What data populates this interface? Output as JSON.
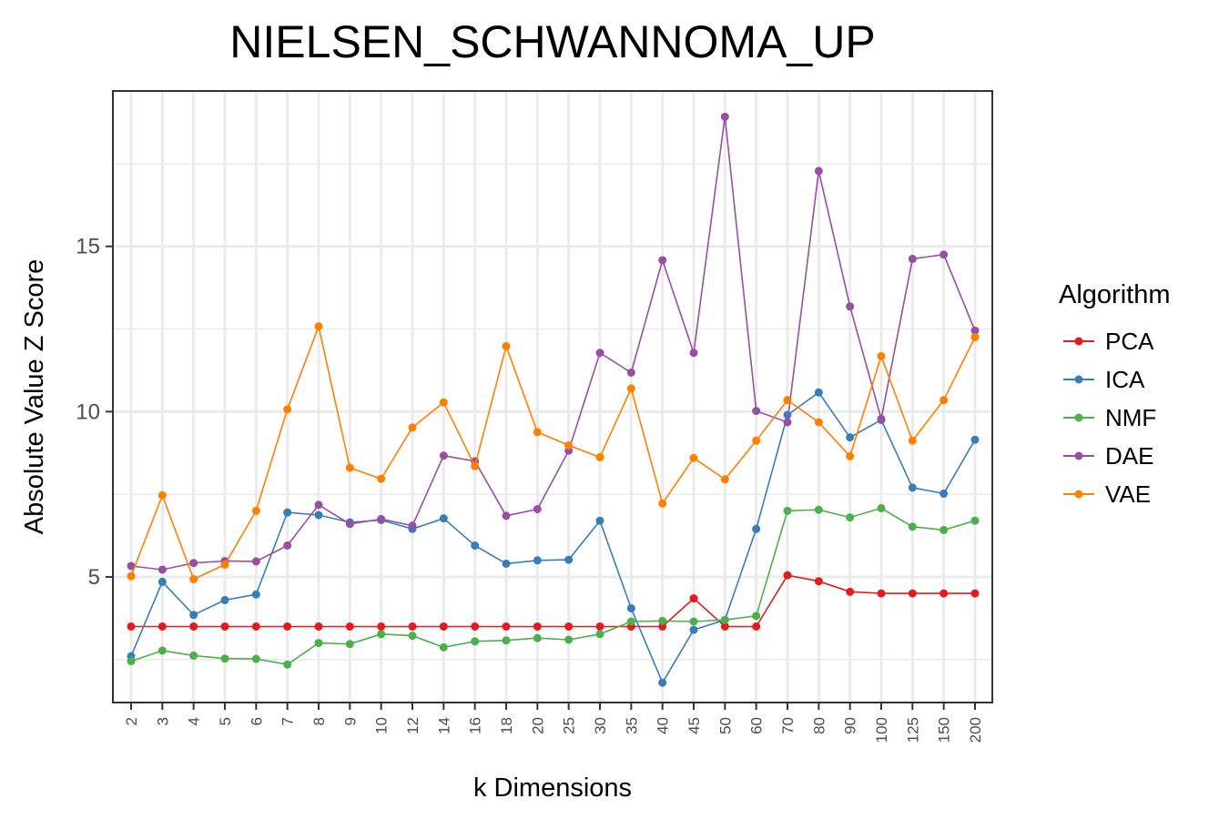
{
  "chart_data": {
    "type": "line",
    "title": "NIELSEN_SCHWANNOMA_UP",
    "xlabel": "k Dimensions",
    "ylabel": "Absolute Value Z Score",
    "categories": [
      "2",
      "3",
      "4",
      "5",
      "6",
      "7",
      "8",
      "9",
      "10",
      "12",
      "14",
      "16",
      "18",
      "20",
      "25",
      "30",
      "35",
      "40",
      "45",
      "50",
      "60",
      "70",
      "80",
      "90",
      "100",
      "125",
      "150",
      "200"
    ],
    "yticks": [
      5,
      10,
      15
    ],
    "ylim": [
      1.2,
      19.7
    ],
    "grid": true,
    "legend": {
      "title": "Algorithm",
      "placement": "right"
    },
    "series": [
      {
        "name": "PCA",
        "color": "#e41a1c",
        "values": [
          3.5,
          3.5,
          3.5,
          3.5,
          3.5,
          3.5,
          3.5,
          3.5,
          3.5,
          3.5,
          3.5,
          3.5,
          3.5,
          3.5,
          3.5,
          3.5,
          3.5,
          3.5,
          4.35,
          3.5,
          3.5,
          5.05,
          4.87,
          4.55,
          4.5,
          4.5,
          4.5,
          4.5
        ]
      },
      {
        "name": "ICA",
        "color": "#377eb8",
        "values": [
          2.6,
          4.85,
          3.85,
          4.3,
          4.47,
          6.95,
          6.87,
          6.65,
          6.72,
          6.45,
          6.77,
          5.95,
          5.4,
          5.5,
          5.52,
          6.7,
          4.05,
          1.8,
          3.4,
          3.7,
          6.45,
          9.9,
          10.58,
          9.22,
          9.75,
          7.7,
          7.52,
          9.15
        ]
      },
      {
        "name": "NMF",
        "color": "#4daf4a",
        "values": [
          2.45,
          2.77,
          2.62,
          2.53,
          2.52,
          2.35,
          3.0,
          2.97,
          3.27,
          3.22,
          2.87,
          3.05,
          3.08,
          3.15,
          3.1,
          3.27,
          3.65,
          3.67,
          3.65,
          3.7,
          3.82,
          7.0,
          7.03,
          6.8,
          7.08,
          6.52,
          6.42,
          6.7
        ]
      },
      {
        "name": "DAE",
        "color": "#984ea3",
        "values": [
          5.33,
          5.22,
          5.42,
          5.48,
          5.47,
          5.95,
          7.18,
          6.6,
          6.75,
          6.55,
          8.67,
          8.5,
          6.85,
          7.05,
          8.82,
          11.78,
          11.18,
          14.58,
          11.78,
          18.92,
          10.02,
          9.68,
          17.28,
          13.18,
          9.78,
          14.62,
          14.75,
          12.45
        ]
      },
      {
        "name": "VAE",
        "color": "#ff7f00",
        "values": [
          5.02,
          7.47,
          4.93,
          5.37,
          7.0,
          10.07,
          12.58,
          8.3,
          7.97,
          9.52,
          10.28,
          8.35,
          11.98,
          9.38,
          8.98,
          8.62,
          10.7,
          7.22,
          8.6,
          7.95,
          9.12,
          10.35,
          9.68,
          8.65,
          11.68,
          9.12,
          10.35,
          12.25
        ]
      }
    ]
  }
}
